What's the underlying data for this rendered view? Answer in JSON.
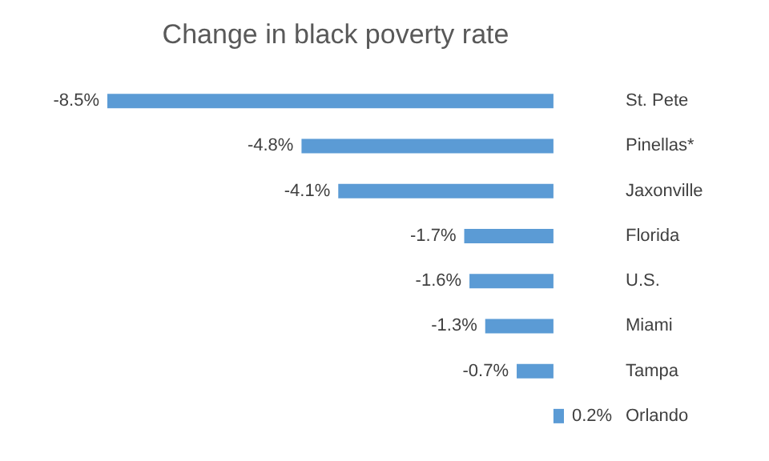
{
  "chart_data": {
    "type": "bar",
    "orientation": "horizontal",
    "title": "Change in black poverty rate",
    "categories": [
      "St. Pete",
      "Pinellas*",
      "Jaxonville",
      "Florida",
      "U.S.",
      "Miami",
      "Tampa",
      "Orlando"
    ],
    "values": [
      -8.5,
      -4.8,
      -4.1,
      -1.7,
      -1.6,
      -1.3,
      -0.7,
      0.2
    ],
    "value_labels": [
      "-8.5%",
      "-4.8%",
      "-4.1%",
      "-1.7%",
      "-1.6%",
      "-1.3%",
      "-0.7%",
      "0.2%"
    ],
    "color": "#5b9bd5"
  }
}
